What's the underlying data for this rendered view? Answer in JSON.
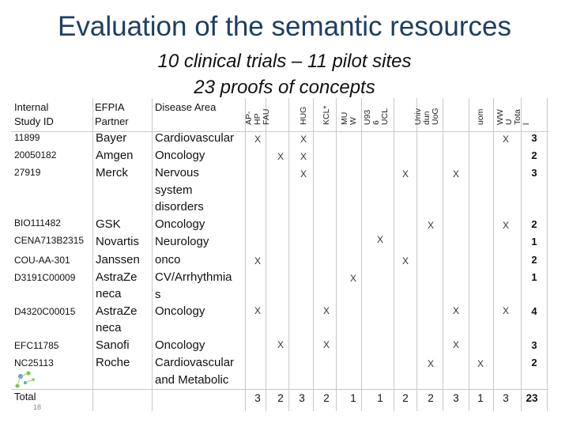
{
  "slide": {
    "title": "Evaluation of the semantic resources",
    "subtitle_line1": "10 clinical trials – 11 pilot sites",
    "subtitle_line2": "23 proofs of concepts",
    "page_number": "18"
  },
  "table": {
    "headers": {
      "study_id_l1": "Internal",
      "study_id_l2": "Study ID",
      "partner_l1": "EFPIA",
      "partner_l2": "Partner",
      "disease": "Disease Area"
    },
    "sites": [
      [
        "AP-",
        "HP",
        "FAU"
      ],
      [
        "HUG"
      ],
      [
        "KCL*"
      ],
      [
        "MU",
        "W"
      ],
      [
        "U93",
        "6",
        "UCL"
      ],
      [
        "Univ",
        "dun",
        "UoG"
      ],
      [
        "uom"
      ],
      [
        "WW",
        "U",
        "Tota",
        "l"
      ]
    ],
    "rows": [
      {
        "id": "11899",
        "partner": "Bayer",
        "disease": [
          "Cardiovascular"
        ],
        "total": "3"
      },
      {
        "id": "20050182",
        "partner": "Amgen",
        "disease": [
          "Oncology"
        ],
        "total": "2"
      },
      {
        "id": "27919",
        "partner": "Merck",
        "disease": [
          "Nervous",
          "system",
          "disorders"
        ],
        "total": "3"
      },
      {
        "id": "BIO111482",
        "partner": "GSK",
        "disease": [
          "Oncology"
        ],
        "total": "2"
      },
      {
        "id": "CENA713B2315",
        "partner": "Novartis",
        "disease": [
          "Neurology"
        ],
        "total": "1"
      },
      {
        "id": "COU-AA-301",
        "partner": "Janssen",
        "disease": [
          "onco"
        ],
        "total": "2"
      },
      {
        "id": "D3191C00009",
        "partner": "AstraZe",
        "partner2": "neca",
        "disease": [
          "CV/Arrhythmia",
          "s"
        ],
        "total": "1"
      },
      {
        "id": "D4320C00015",
        "partner": "AstraZe",
        "partner2": "neca",
        "disease": [
          "Oncology"
        ],
        "total": "4"
      },
      {
        "id": "EFC11785",
        "partner": "Sanofi",
        "disease": [
          "Oncology"
        ],
        "total": "3"
      },
      {
        "id": "NC25113",
        "partner": "Roche",
        "disease": [
          "Cardiovascular",
          "and Metabolic"
        ],
        "total": "2"
      }
    ],
    "mark_symbol": "X",
    "total_label": "Total",
    "column_totals": [
      "3",
      "2",
      "3",
      "2",
      "1",
      "1",
      "2",
      "2",
      "3",
      "1",
      "3",
      "23"
    ]
  }
}
